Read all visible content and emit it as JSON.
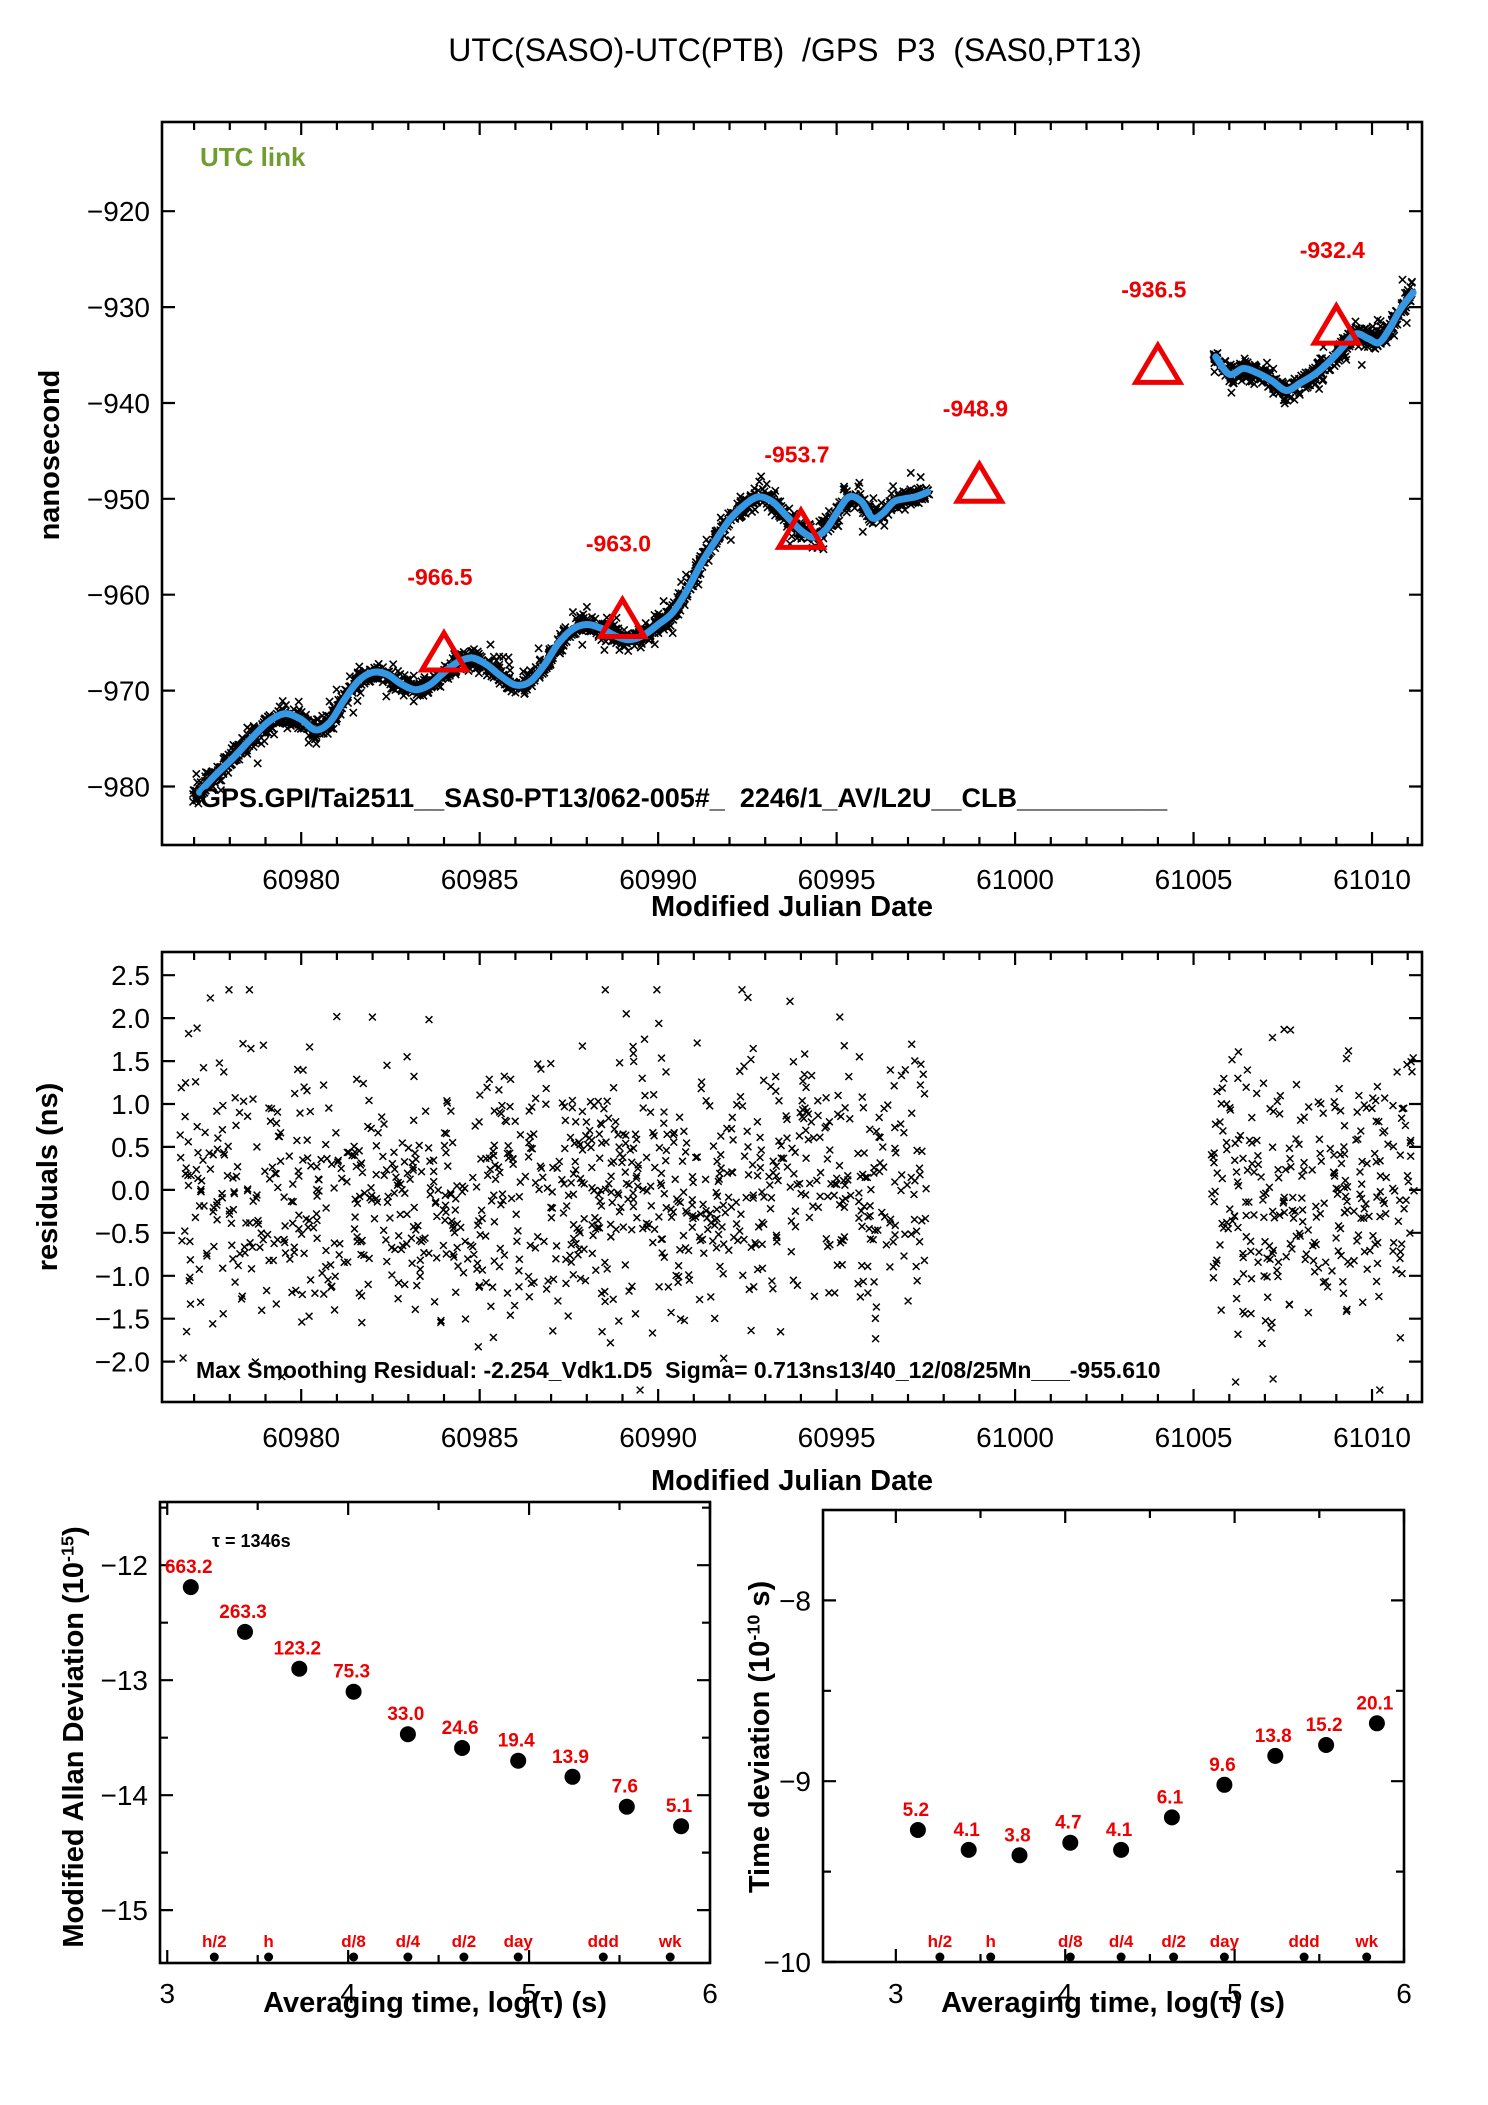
{
  "title": "UTC(SASO)-UTC(PTB)  /GPS  P3  (SAS0,PT13)",
  "colors": {
    "red": "#ee0000",
    "blue": "#3697e3",
    "green": "#6f9d2f",
    "black": "#000000"
  },
  "chart_data": [
    {
      "id": "utc-link-main",
      "type": "scatter",
      "badge": "UTC link",
      "ylabel": "nanosecond",
      "xlabel": "Modified Julian Date",
      "annotation": "GPS.GPI/Tai2511__SAS0-PT13/062-005#_  2246/1_AV/L2U__CLB__________",
      "xlim": [
        60976.1,
        61011.4
      ],
      "ylim": [
        -910.7,
        -986.1
      ],
      "xticks": [
        60980,
        60985,
        60990,
        60995,
        61000,
        61005,
        61010
      ],
      "x_minor_step": 1,
      "yticks": [
        -920,
        -930,
        -940,
        -950,
        -960,
        -970,
        -980
      ],
      "ytick_decimals": 0,
      "noise_sigma_ns": 0.5,
      "segments": [
        {
          "x0": 60976.95,
          "x1": 60997.6,
          "n": 1900,
          "line": 0
        },
        {
          "x0": 61005.55,
          "x1": 61011.15,
          "n": 520,
          "line": 1
        }
      ],
      "smoothed_lines": [
        [
          [
            60977.15,
            -980.6
          ],
          [
            60977.6,
            -978.8
          ],
          [
            60978.1,
            -977.0
          ],
          [
            60978.6,
            -975.0
          ],
          [
            60979.1,
            -973.2
          ],
          [
            60979.55,
            -972.4
          ],
          [
            60980.0,
            -973.0
          ],
          [
            60980.4,
            -974.1
          ],
          [
            60980.8,
            -973.3
          ],
          [
            60981.2,
            -971.0
          ],
          [
            60981.6,
            -969.0
          ],
          [
            60982.0,
            -968.1
          ],
          [
            60982.4,
            -968.3
          ],
          [
            60982.8,
            -969.3
          ],
          [
            60983.2,
            -969.9
          ],
          [
            60983.6,
            -969.4
          ],
          [
            60984.0,
            -968.1
          ],
          [
            60984.4,
            -967.0
          ],
          [
            60984.8,
            -966.6
          ],
          [
            60985.2,
            -967.3
          ],
          [
            60985.6,
            -968.5
          ],
          [
            60986.0,
            -969.4
          ],
          [
            60986.4,
            -969.1
          ],
          [
            60986.8,
            -967.4
          ],
          [
            60987.2,
            -965.1
          ],
          [
            60987.6,
            -963.6
          ],
          [
            60988.0,
            -963.1
          ],
          [
            60988.4,
            -963.5
          ],
          [
            60988.8,
            -964.3
          ],
          [
            60989.2,
            -964.7
          ],
          [
            60989.6,
            -964.2
          ],
          [
            60990.0,
            -963.1
          ],
          [
            60990.4,
            -961.9
          ],
          [
            60990.8,
            -959.6
          ],
          [
            60991.2,
            -956.8
          ],
          [
            60991.6,
            -954.4
          ],
          [
            60992.0,
            -952.2
          ],
          [
            60992.4,
            -950.7
          ],
          [
            60992.8,
            -949.8
          ],
          [
            60993.2,
            -950.3
          ],
          [
            60993.6,
            -951.8
          ],
          [
            60994.0,
            -953.3
          ],
          [
            60994.35,
            -954.0
          ],
          [
            60994.7,
            -953.2
          ],
          [
            60995.0,
            -951.5
          ],
          [
            60995.35,
            -949.8
          ],
          [
            60995.7,
            -950.3
          ],
          [
            60996.0,
            -952.0
          ],
          [
            60996.3,
            -951.5
          ],
          [
            60996.6,
            -950.3
          ],
          [
            60996.9,
            -950.0
          ],
          [
            60997.2,
            -949.8
          ],
          [
            60997.55,
            -949.3
          ]
        ],
        [
          [
            61005.62,
            -935.2
          ],
          [
            61006.0,
            -937.0
          ],
          [
            61006.4,
            -936.4
          ],
          [
            61006.8,
            -936.9
          ],
          [
            61007.2,
            -937.7
          ],
          [
            61007.6,
            -938.7
          ],
          [
            61008.0,
            -937.9
          ],
          [
            61008.4,
            -937.0
          ],
          [
            61008.8,
            -935.7
          ],
          [
            61009.2,
            -934.1
          ],
          [
            61009.55,
            -932.8
          ],
          [
            61009.9,
            -933.3
          ],
          [
            61010.2,
            -933.7
          ],
          [
            61010.5,
            -932.2
          ],
          [
            61010.8,
            -930.2
          ],
          [
            61011.15,
            -928.5
          ]
        ]
      ],
      "calibration": {
        "x": [
          60984,
          60989,
          60994,
          60999,
          61004,
          61009
        ],
        "y": [
          -966.5,
          -963.0,
          -953.7,
          -948.9,
          -936.5,
          -932.4
        ],
        "labels": [
          "-966.5",
          "-963.0",
          "-953.7",
          "-948.9",
          "-936.5",
          "-932.4"
        ]
      }
    },
    {
      "id": "residuals",
      "type": "scatter",
      "ylabel": "residuals (ns)",
      "xlabel": "Modified Julian Date",
      "annotation": "Max Smoothing Residual: -2.254_Vdk1.D5  Sigma= 0.713ns13/40_12/08/25Mn___-955.610",
      "xlim": [
        60976.1,
        61011.4
      ],
      "ylim": [
        2.77,
        -2.47
      ],
      "xticks": [
        60980,
        60985,
        60990,
        60995,
        61000,
        61005,
        61010
      ],
      "x_minor_step": 1,
      "yticks": [
        2.5,
        2.0,
        1.5,
        1.0,
        0.5,
        0.0,
        -0.5,
        -1.0,
        -1.5,
        -2.0
      ],
      "ytick_decimals": 1,
      "noise_sigma_ns": 0.78,
      "clip": 2.33,
      "segments": [
        {
          "x0": 60976.6,
          "x1": 60997.6,
          "n": 1050
        },
        {
          "x0": 61005.5,
          "x1": 61011.2,
          "n": 300
        }
      ]
    },
    {
      "id": "mdev",
      "type": "scatter-labeled",
      "ylabel_base": "Modified Allan Deviation (10",
      "ylabel_exp": "-15",
      "ylabel_suffix": ")",
      "xlabel": "Averaging time, log(τ) (s)",
      "tau_label": "τ = 1346s",
      "xlim": [
        2.96,
        6.0
      ],
      "ylim": [
        -11.45,
        -15.46
      ],
      "xticks": [
        3,
        4,
        5,
        6
      ],
      "x_minor_step": 0.5,
      "yticks": [
        -12,
        -13,
        -14,
        -15
      ],
      "y_minor_step": 0.5,
      "ytick_decimals": 0,
      "log_tau": [
        3.13,
        3.43,
        3.73,
        4.03,
        4.33,
        4.63,
        4.94,
        5.24,
        5.54,
        5.84
      ],
      "values": [
        -12.19,
        -12.58,
        -12.9,
        -13.1,
        -13.47,
        -13.59,
        -13.7,
        -13.84,
        -14.1,
        -14.27
      ],
      "point_labels": [
        "663.2",
        "263.3",
        "123.2",
        "75.3",
        "33.0",
        "24.6",
        "19.4",
        "13.9",
        "7.6",
        "5.1"
      ],
      "time_marks": {
        "labels": [
          "h/2",
          "h",
          "d/8",
          "d/4",
          "d/2",
          "day",
          "ddd",
          "wk"
        ],
        "log_tau": [
          3.26,
          3.56,
          4.03,
          4.33,
          4.64,
          4.94,
          5.41,
          5.78
        ]
      }
    },
    {
      "id": "tdev",
      "type": "scatter-labeled",
      "ylabel_base": "Time deviation (10",
      "ylabel_exp": "-10",
      "ylabel_suffix": " s)",
      "xlabel": "Averaging time, log(τ) (s)",
      "xlim": [
        2.57,
        6.0
      ],
      "ylim": [
        -7.5,
        -10.0
      ],
      "xticks": [
        3,
        4,
        5,
        6
      ],
      "x_minor_step": 0.5,
      "yticks": [
        -8,
        -9,
        -10
      ],
      "y_minor_step": 0.5,
      "ytick_decimals": 0,
      "log_tau": [
        3.13,
        3.43,
        3.73,
        4.03,
        4.33,
        4.63,
        4.94,
        5.24,
        5.54,
        5.84
      ],
      "values": [
        -9.27,
        -9.38,
        -9.41,
        -9.34,
        -9.38,
        -9.2,
        -9.02,
        -8.86,
        -8.8,
        -8.68
      ],
      "point_labels": [
        "5.2",
        "4.1",
        "3.8",
        "4.7",
        "4.1",
        "6.1",
        "9.6",
        "13.8",
        "15.2",
        "20.1"
      ],
      "time_marks": {
        "labels": [
          "h/2",
          "h",
          "d/8",
          "d/4",
          "d/2",
          "day",
          "ddd",
          "wk"
        ],
        "log_tau": [
          3.26,
          3.56,
          4.03,
          4.33,
          4.64,
          4.94,
          5.41,
          5.78
        ]
      }
    }
  ]
}
